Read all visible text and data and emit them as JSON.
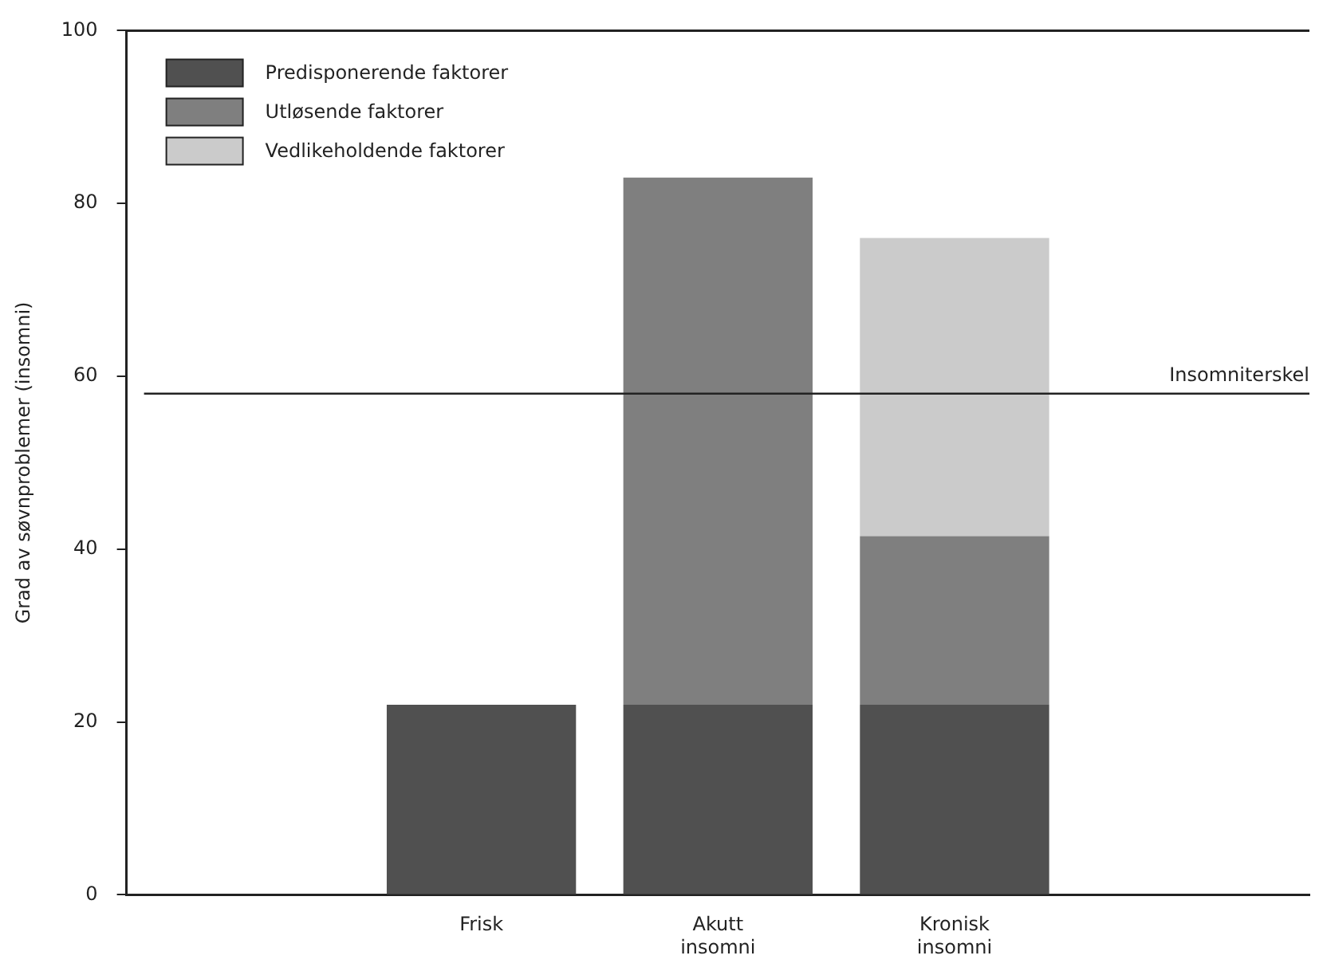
{
  "chart_data": {
    "type": "bar",
    "stacked": true,
    "ylabel": "Grad av søvnproblemer (insomni)",
    "categories": [
      null,
      "Frisk",
      "Akutt insomni",
      "Kronisk insomni",
      null
    ],
    "series": [
      {
        "name": "Predisponerende faktorer",
        "color": "#505050",
        "values": [
          null,
          22,
          22,
          22,
          null
        ]
      },
      {
        "name": "Utløsende faktorer",
        "color": "#7f7f7f",
        "values": [
          null,
          null,
          61,
          19.5,
          null
        ]
      },
      {
        "name": "Vedlikeholdende faktorer",
        "color": "#cbcbcb",
        "values": [
          null,
          null,
          null,
          34.5,
          null
        ]
      }
    ],
    "ylim": [
      0,
      100
    ],
    "yticks": [
      0,
      20,
      40,
      60,
      80,
      100
    ],
    "grid": false,
    "legend": "top left",
    "ref_lines": [
      {
        "axis": "y",
        "value": 58,
        "label": "Insomniterskel",
        "color": "#222222"
      }
    ]
  }
}
